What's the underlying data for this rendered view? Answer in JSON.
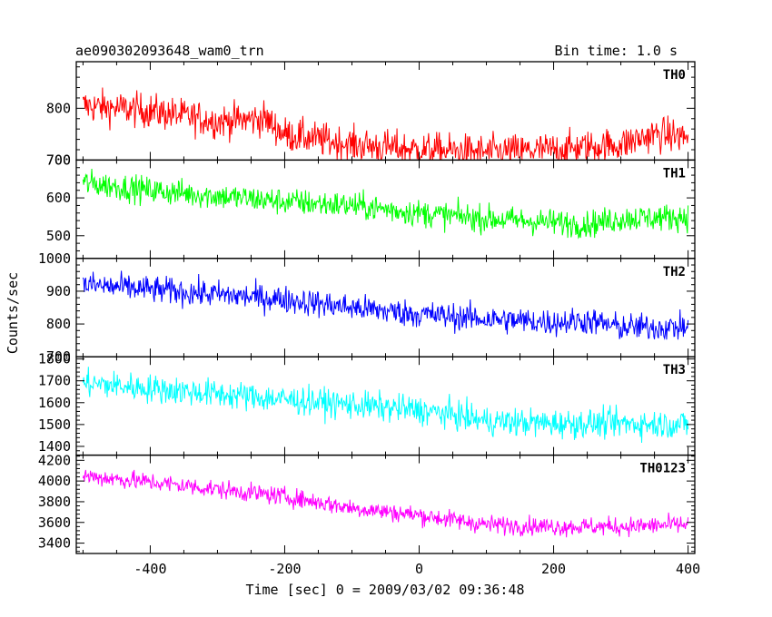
{
  "chart_data": {
    "type": "line",
    "title_left": "ae090302093648_wam0_trn",
    "title_right": "Bin time: 1.0 s",
    "xlabel": "Time [sec] 0 = 2009/03/02 09:36:48",
    "ylabel": "Counts/sec",
    "xlim": [
      -510,
      410
    ],
    "xticks": [
      -400,
      -200,
      0,
      200,
      400
    ],
    "panels": [
      {
        "name": "TH0",
        "color": "#ff0000",
        "ylim": [
          700,
          890
        ],
        "yticks": [
          700,
          800
        ],
        "trend_x": [
          -500,
          -400,
          -300,
          -230,
          -200,
          -100,
          0,
          100,
          200,
          300,
          350,
          400
        ],
        "trend_y": [
          805,
          795,
          775,
          780,
          750,
          730,
          720,
          715,
          720,
          730,
          750,
          745
        ],
        "noise": 28
      },
      {
        "name": "TH1",
        "color": "#00ff00",
        "ylim": [
          440,
          700
        ],
        "yticks": [
          500,
          600,
          700
        ],
        "trend_x": [
          -500,
          -400,
          -300,
          -200,
          -100,
          0,
          100,
          200,
          250,
          300,
          400
        ],
        "trend_y": [
          640,
          620,
          605,
          590,
          580,
          560,
          545,
          535,
          530,
          545,
          550
        ],
        "noise": 30
      },
      {
        "name": "TH2",
        "color": "#0000ff",
        "ylim": [
          700,
          1000
        ],
        "yticks": [
          700,
          800,
          900,
          1000
        ],
        "trend_x": [
          -500,
          -400,
          -300,
          -200,
          -100,
          0,
          100,
          200,
          250,
          300,
          400
        ],
        "trend_y": [
          920,
          905,
          890,
          875,
          850,
          830,
          815,
          805,
          810,
          790,
          790
        ],
        "noise": 35
      },
      {
        "name": "TH3",
        "color": "#00ffff",
        "ylim": [
          1360,
          1810
        ],
        "yticks": [
          1400,
          1500,
          1600,
          1700,
          1800
        ],
        "trend_x": [
          -500,
          -400,
          -300,
          -200,
          -100,
          0,
          50,
          100,
          200,
          300,
          400
        ],
        "trend_y": [
          1690,
          1665,
          1640,
          1615,
          1590,
          1565,
          1545,
          1515,
          1505,
          1505,
          1500
        ],
        "noise": 55
      },
      {
        "name": "TH0123",
        "color": "#ff00ff",
        "ylim": [
          3300,
          4250
        ],
        "yticks": [
          3400,
          3600,
          3800,
          4000,
          4200
        ],
        "trend_x": [
          -500,
          -400,
          -300,
          -200,
          -100,
          0,
          100,
          200,
          300,
          400
        ],
        "trend_y": [
          4050,
          3990,
          3920,
          3850,
          3740,
          3670,
          3580,
          3560,
          3560,
          3580
        ],
        "noise": 75
      }
    ]
  }
}
